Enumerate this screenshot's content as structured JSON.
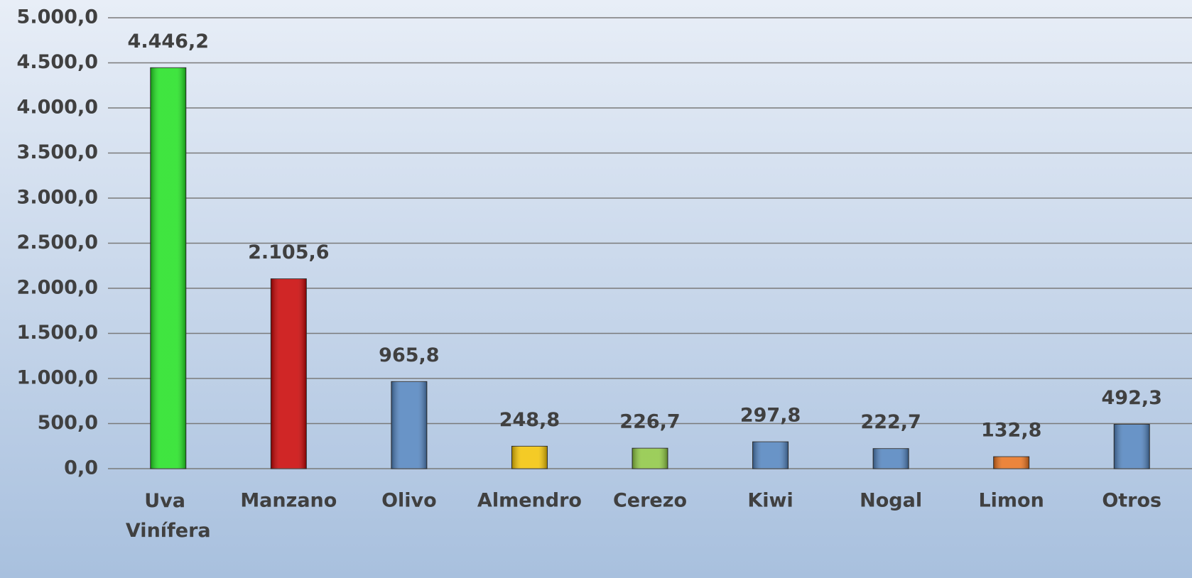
{
  "chart_data": {
    "type": "bar",
    "categories": [
      "Uva Vinífera",
      "Manzano",
      "Olivo",
      "Almendro",
      "Cerezo",
      "Kiwi",
      "Nogal",
      "Limon",
      "Otros"
    ],
    "values": [
      4446.2,
      2105.6,
      965.8,
      248.8,
      226.7,
      297.8,
      222.7,
      132.8,
      492.3
    ],
    "value_labels": [
      "4.446,2",
      "2.105,6",
      "965,8",
      "248,8",
      "226,7",
      "297,8",
      "222,7",
      "132,8",
      "492,3"
    ],
    "colors": [
      "#1ee01e",
      "#c80000",
      "#4f81bd",
      "#f2c200",
      "#8cc63f",
      "#4f81bd",
      "#4f81bd",
      "#e8701a",
      "#4f81bd"
    ],
    "ylim": [
      0,
      5000
    ],
    "yticks": [
      {
        "value": 0,
        "label": "0,0"
      },
      {
        "value": 500,
        "label": "500,0"
      },
      {
        "value": 1000,
        "label": "1.000,0"
      },
      {
        "value": 1500,
        "label": "1.500,0"
      },
      {
        "value": 2000,
        "label": "2.000,0"
      },
      {
        "value": 2500,
        "label": "2.500,0"
      },
      {
        "value": 3000,
        "label": "3.000,0"
      },
      {
        "value": 3500,
        "label": "3.500,0"
      },
      {
        "value": 4000,
        "label": "4.000,0"
      },
      {
        "value": 4500,
        "label": "4.500,0"
      },
      {
        "value": 5000,
        "label": "5.000,0"
      }
    ],
    "grid": true
  }
}
